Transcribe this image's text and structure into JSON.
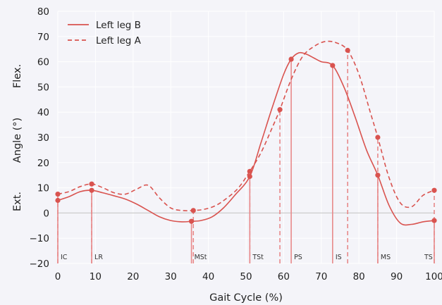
{
  "chart_data": {
    "type": "line",
    "xlabel": "Gait Cycle (%)",
    "ylabel": "Angle (°)",
    "ylabel_extra": {
      "top": "Flex.",
      "bottom": "Ext."
    },
    "xlim": [
      0,
      100
    ],
    "ylim": [
      -20,
      80
    ],
    "xticks": [
      0,
      10,
      20,
      30,
      40,
      50,
      60,
      70,
      80,
      90,
      100
    ],
    "yticks": [
      -20,
      -10,
      0,
      10,
      20,
      30,
      40,
      50,
      60,
      70,
      80
    ],
    "grid": true,
    "legend_position": "top-left",
    "series": [
      {
        "name": "Left leg B",
        "style": "solid",
        "color": "#d9534f",
        "x": [
          0,
          3,
          6,
          9,
          12,
          15,
          18,
          21,
          24,
          27,
          30,
          33,
          35.5,
          38,
          41,
          44,
          47,
          51,
          54,
          57,
          60,
          62,
          64,
          66,
          68,
          70,
          73,
          76,
          79,
          82,
          85,
          88,
          91,
          94,
          97,
          100
        ],
        "y": [
          5,
          6.5,
          8.5,
          9,
          8,
          6.8,
          5.5,
          3.5,
          1,
          -1.5,
          -3,
          -3.5,
          -3.3,
          -3,
          -1.5,
          2,
          7,
          14.5,
          28,
          42,
          55,
          61,
          63.5,
          63,
          61.5,
          60,
          58.5,
          50,
          38,
          25,
          15,
          3,
          -4,
          -4.5,
          -3.5,
          -3
        ]
      },
      {
        "name": "Left leg A",
        "style": "dashed",
        "color": "#d9534f",
        "x": [
          0,
          3,
          6,
          9,
          12,
          15,
          18,
          21,
          24,
          27,
          30,
          33,
          36,
          39,
          42,
          45,
          48,
          51,
          54,
          57,
          59,
          62,
          65,
          68,
          71,
          74,
          77,
          80,
          83,
          85,
          88,
          91,
          94,
          97,
          100
        ],
        "y": [
          7.5,
          8.5,
          10.5,
          11.5,
          10,
          8,
          7.5,
          9.5,
          11,
          6,
          2,
          1,
          1,
          1.5,
          3,
          6,
          10,
          16.5,
          24,
          34,
          41,
          53,
          62,
          66,
          68,
          67.5,
          64.5,
          55,
          40,
          30,
          14,
          4,
          2.5,
          7,
          9
        ]
      }
    ],
    "events": [
      {
        "label": "IC",
        "x_b": 0,
        "x_a": 0
      },
      {
        "label": "LR",
        "x_b": 9,
        "x_a": 9
      },
      {
        "label": "MSt",
        "x_b": 35.5,
        "x_a": 36
      },
      {
        "label": "TSt",
        "x_b": 51,
        "x_a": 51
      },
      {
        "label": "PS",
        "x_b": 62,
        "x_a": 59
      },
      {
        "label": "IS",
        "x_b": 73,
        "x_a": 77
      },
      {
        "label": "MS",
        "x_b": 85,
        "x_a": 85
      },
      {
        "label": "TS",
        "x_b": 100,
        "x_a": 100
      }
    ],
    "event_markers_b": [
      {
        "x": 0,
        "y": 5
      },
      {
        "x": 9,
        "y": 9
      },
      {
        "x": 35.5,
        "y": -3.3
      },
      {
        "x": 51,
        "y": 14.5
      },
      {
        "x": 62,
        "y": 61
      },
      {
        "x": 73,
        "y": 58.5
      },
      {
        "x": 85,
        "y": 15
      },
      {
        "x": 100,
        "y": -3
      }
    ],
    "event_markers_a": [
      {
        "x": 0,
        "y": 7.5
      },
      {
        "x": 9,
        "y": 11.5
      },
      {
        "x": 36,
        "y": 1
      },
      {
        "x": 51,
        "y": 16.5
      },
      {
        "x": 59,
        "y": 41
      },
      {
        "x": 77,
        "y": 64.5
      },
      {
        "x": 85,
        "y": 30
      },
      {
        "x": 100,
        "y": 9
      }
    ]
  }
}
